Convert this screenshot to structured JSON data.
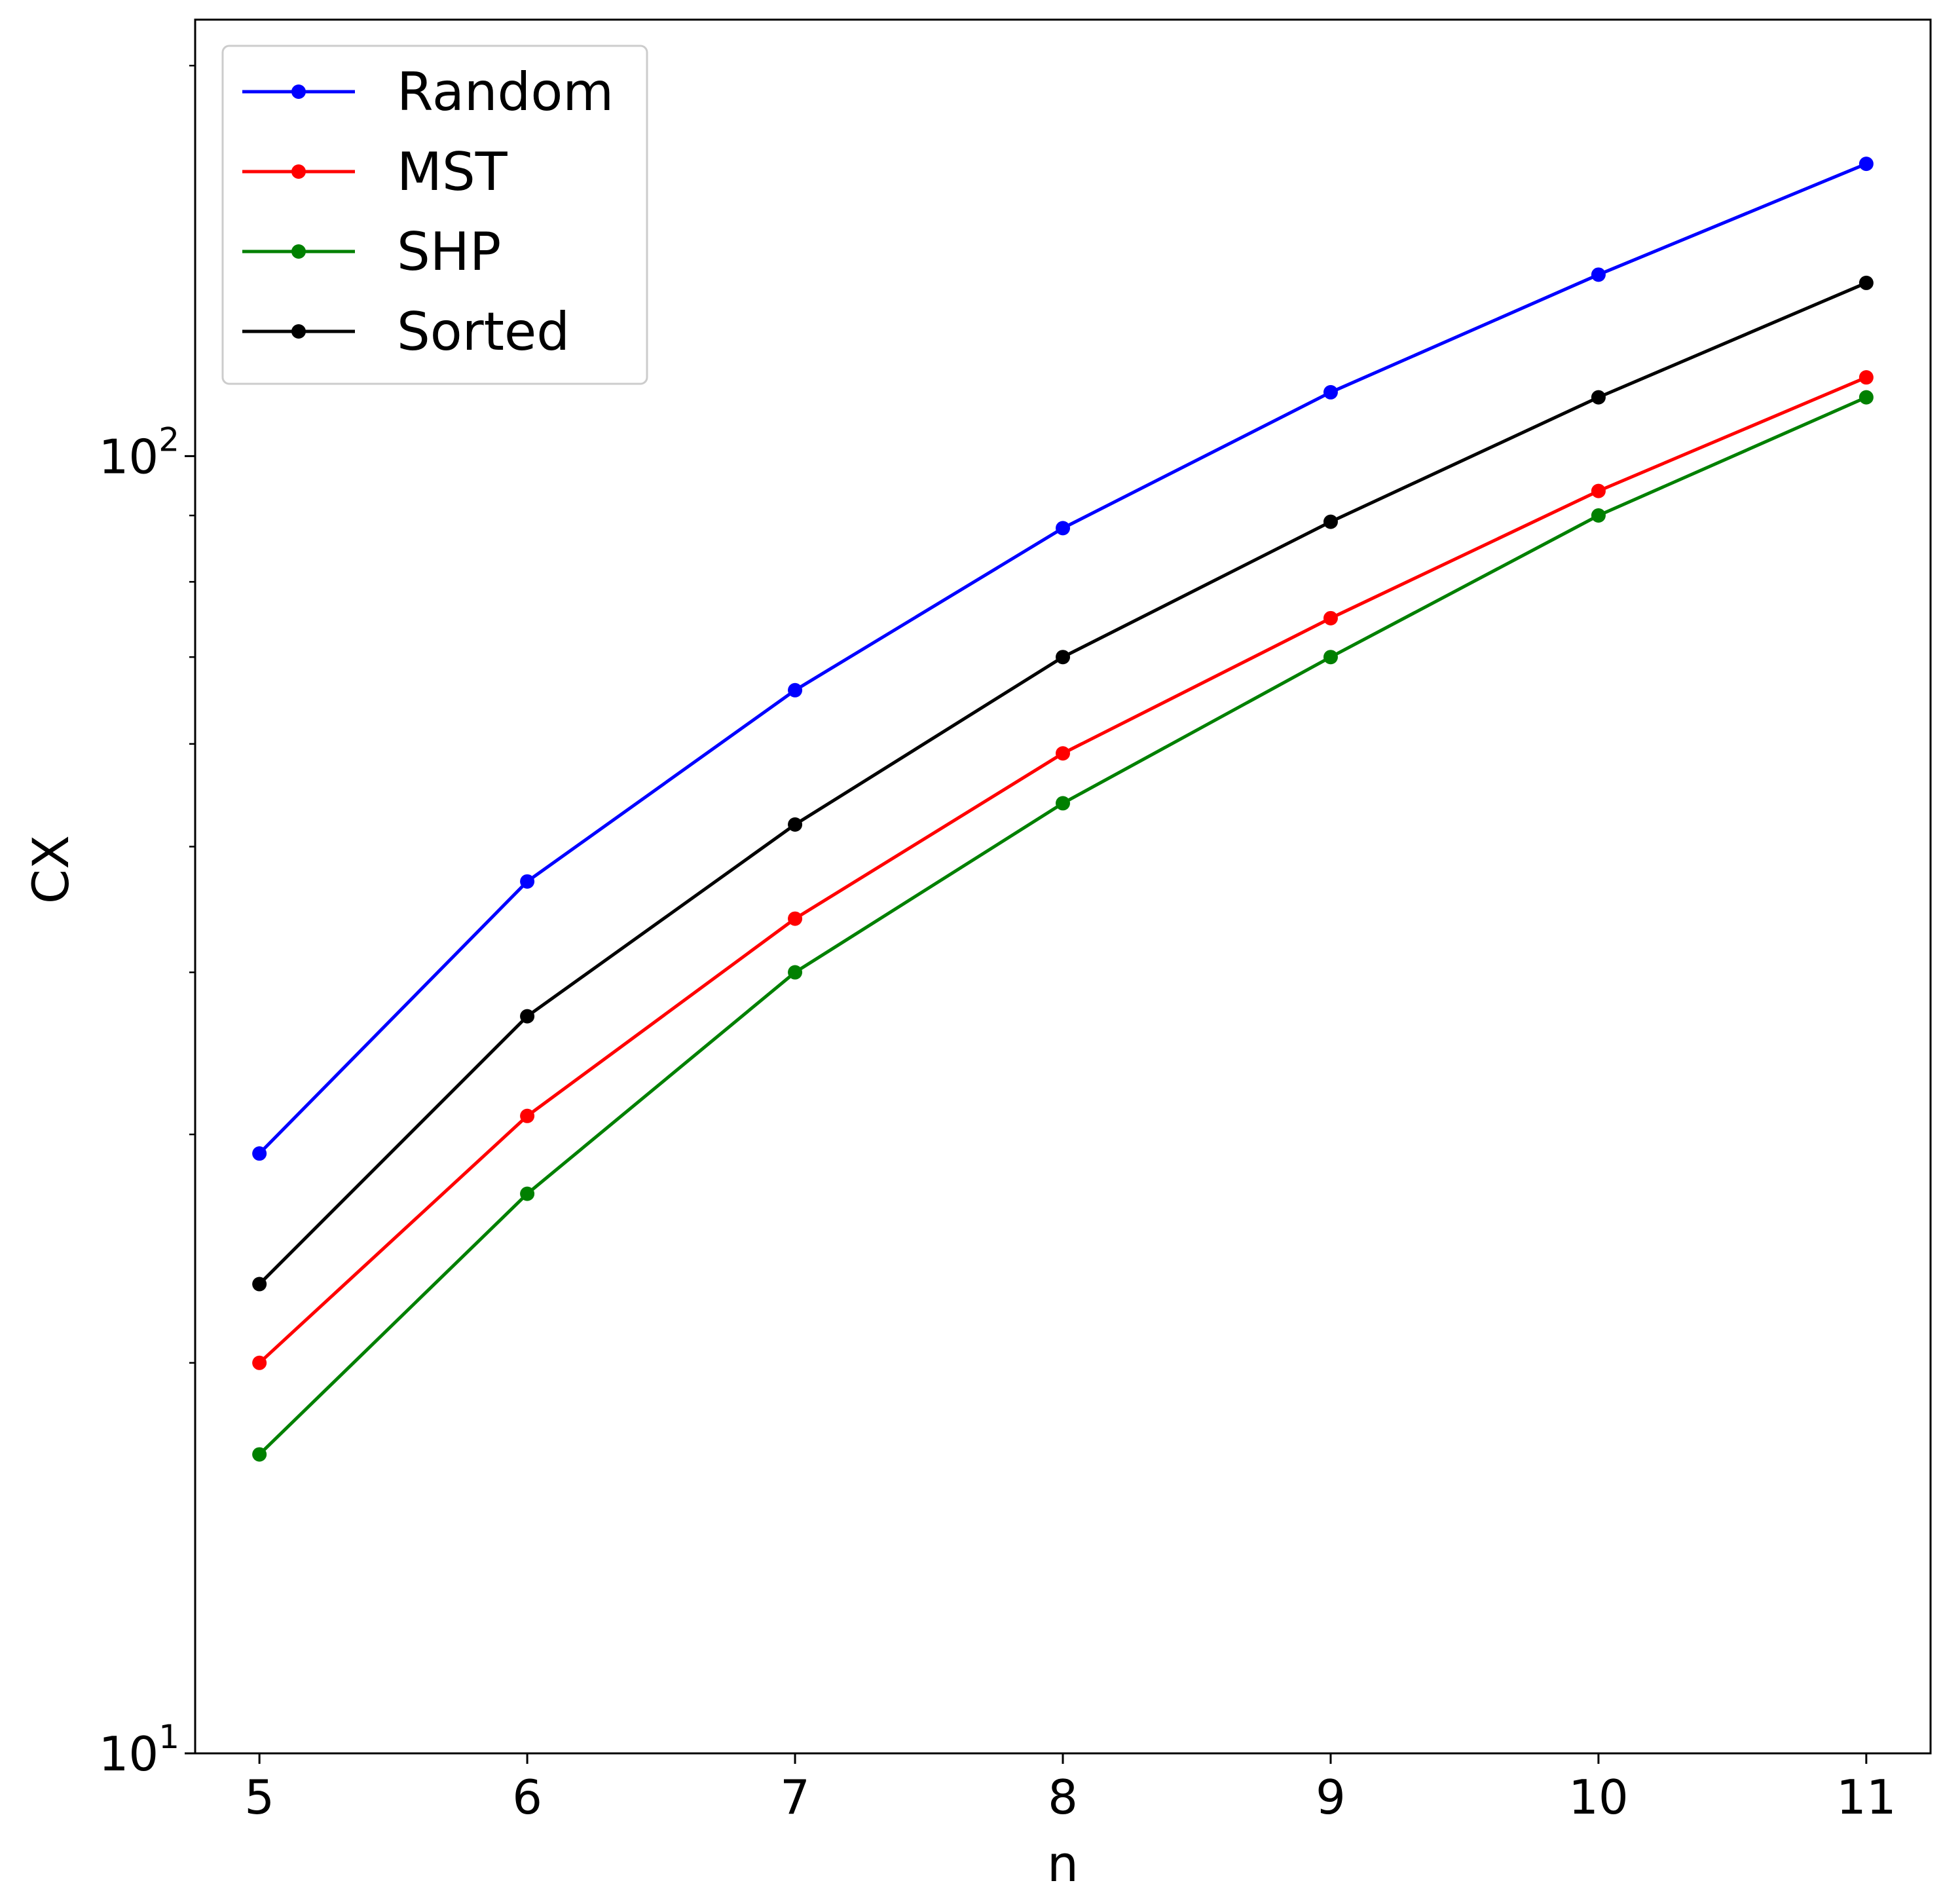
{
  "chart_data": {
    "type": "line",
    "xlabel": "n",
    "ylabel": "CX",
    "yscale": "log",
    "xlim": [
      4.76,
      11.24
    ],
    "ylim": [
      10,
      217
    ],
    "x": [
      5,
      6,
      7,
      8,
      9,
      10,
      11
    ],
    "xticks": [
      "5",
      "6",
      "7",
      "8",
      "9",
      "10",
      "11"
    ],
    "yticks": [
      {
        "value": 10,
        "base": "10",
        "exp": "1"
      },
      {
        "value": 100,
        "base": "10",
        "exp": "2"
      }
    ],
    "grid": false,
    "legend": {
      "placement": "top-left"
    },
    "series": [
      {
        "name": "Random",
        "color": "#0000ff",
        "values": [
          29,
          47,
          66,
          88,
          112,
          138,
          168
        ]
      },
      {
        "name": "MST",
        "color": "#ff0000",
        "values": [
          20,
          31,
          44,
          59,
          75,
          94,
          115
        ]
      },
      {
        "name": "SHP",
        "color": "#008000",
        "values": [
          17,
          27,
          40,
          54,
          70,
          90,
          111
        ]
      },
      {
        "name": "Sorted",
        "color": "#000000",
        "values": [
          23,
          37,
          52,
          70,
          89,
          111,
          136
        ]
      }
    ]
  }
}
